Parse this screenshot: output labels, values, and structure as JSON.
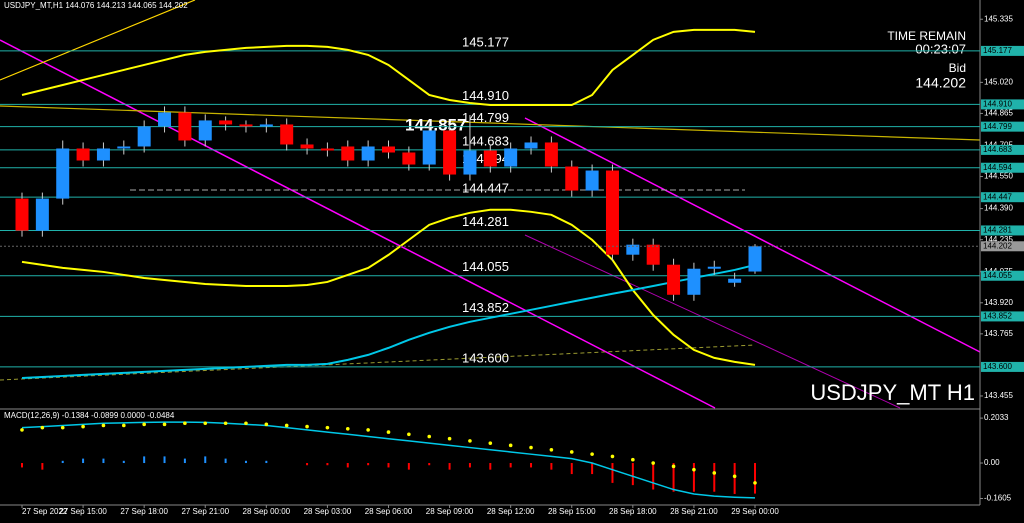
{
  "chart_data": {
    "type": "candlestick",
    "info": "USDJPY_MT,H1  144.076 144.213 144.065 144.202",
    "symbol": "USDJPY_MT H1",
    "time_remain_label": "TIME REMAIN",
    "time_remain": "00:23:07",
    "bid_label": "Bid",
    "bid": 144.202,
    "annotation": 144.857,
    "categories": [
      "27 Sep 2022",
      null,
      null,
      "27 Sep 15:00",
      null,
      null,
      "27 Sep 18:00",
      null,
      null,
      "27 Sep 21:00",
      null,
      null,
      "28 Sep 00:00",
      null,
      null,
      "28 Sep 03:00",
      null,
      null,
      "28 Sep 06:00",
      null,
      null,
      "28 Sep 09:00",
      null,
      null,
      "28 Sep 12:00",
      null,
      null,
      "28 Sep 15:00",
      null,
      null,
      "28 Sep 18:00",
      null,
      null,
      "28 Sep 21:00",
      null,
      null,
      "29 Sep 00:00"
    ],
    "open": [
      144.44,
      144.28,
      144.44,
      144.69,
      144.63,
      144.69,
      144.7,
      144.8,
      144.87,
      144.73,
      144.83,
      144.81,
      144.8,
      144.81,
      144.71,
      144.69,
      144.7,
      144.63,
      144.7,
      144.67,
      144.61,
      144.78,
      144.56,
      144.68,
      144.6,
      144.69,
      144.72,
      144.6,
      144.48,
      144.58,
      144.16,
      144.21,
      144.11,
      143.96,
      144.09,
      144.02,
      144.076
    ],
    "high": [
      144.47,
      144.47,
      144.73,
      144.72,
      144.72,
      144.73,
      144.83,
      144.9,
      144.9,
      144.86,
      144.85,
      144.83,
      144.84,
      144.84,
      144.74,
      144.72,
      144.73,
      144.73,
      144.73,
      144.7,
      144.81,
      144.81,
      144.857,
      144.71,
      144.72,
      144.75,
      144.75,
      144.63,
      144.61,
      144.61,
      144.24,
      144.24,
      144.14,
      144.12,
      144.13,
      144.07,
      144.213
    ],
    "low": [
      144.25,
      144.25,
      144.41,
      144.6,
      144.6,
      144.66,
      144.67,
      144.77,
      144.7,
      144.7,
      144.78,
      144.77,
      144.77,
      144.68,
      144.66,
      144.65,
      144.6,
      144.6,
      144.64,
      144.58,
      144.58,
      144.53,
      144.53,
      144.57,
      144.57,
      144.66,
      144.57,
      144.45,
      144.45,
      144.13,
      144.13,
      144.08,
      143.93,
      143.93,
      144.06,
      144.0,
      144.065
    ],
    "close": [
      144.28,
      144.44,
      144.69,
      144.63,
      144.69,
      144.7,
      144.8,
      144.87,
      144.73,
      144.83,
      144.81,
      144.8,
      144.81,
      144.71,
      144.69,
      144.68,
      144.63,
      144.7,
      144.67,
      144.61,
      144.78,
      144.56,
      144.68,
      144.6,
      144.69,
      144.72,
      144.6,
      144.48,
      144.58,
      144.16,
      144.21,
      144.11,
      143.96,
      144.09,
      144.1,
      144.04,
      144.202
    ],
    "up_color": "#1e90ff",
    "down_color": "#ff0000",
    "overlays": [
      {
        "color": "#ffff00",
        "values": [
          144.957,
          144.982,
          145.007,
          145.032,
          145.057,
          145.082,
          145.107,
          145.132,
          145.157,
          145.172,
          145.182,
          145.192,
          145.197,
          145.202,
          145.202,
          145.197,
          145.182,
          145.157,
          145.107,
          145.032,
          144.957,
          144.932,
          144.917,
          144.907,
          144.907,
          144.907,
          144.907,
          144.907,
          144.957,
          145.082,
          145.157,
          145.232,
          145.272,
          145.282,
          145.282,
          145.282,
          145.272
        ]
      },
      {
        "color": "#ffff00",
        "values": [
          144.124,
          144.109,
          144.094,
          144.084,
          144.074,
          144.059,
          144.044,
          144.034,
          144.024,
          144.014,
          144.009,
          144.004,
          144.004,
          144.004,
          144.009,
          144.024,
          144.059,
          144.094,
          144.159,
          144.234,
          144.309,
          144.344,
          144.369,
          144.384,
          144.384,
          144.374,
          144.359,
          144.309,
          144.234,
          144.134,
          143.984,
          143.859,
          143.76,
          143.685,
          143.645,
          143.625,
          143.61
        ]
      },
      {
        "color": "#00c8e8",
        "values": [
          143.545,
          143.55,
          143.555,
          143.56,
          143.565,
          143.57,
          143.575,
          143.58,
          143.585,
          143.59,
          143.595,
          143.6,
          143.605,
          143.61,
          143.61,
          143.615,
          143.635,
          143.66,
          143.695,
          143.735,
          143.77,
          143.8,
          143.825,
          143.845,
          143.865,
          143.885,
          143.905,
          143.925,
          143.945,
          143.965,
          143.984,
          144.004,
          144.024,
          144.044,
          144.064,
          144.084,
          144.109
        ]
      }
    ],
    "levels": [
      145.177,
      144.91,
      144.799,
      144.683,
      144.594,
      144.447,
      144.281,
      144.055,
      143.852,
      143.6
    ],
    "level_labels": [
      "145.177",
      "144.910",
      "144.799",
      "144.683",
      "144.594",
      "144.447",
      "144.281",
      "144.055",
      "143.852",
      "143.600"
    ],
    "level_color": "#20b2aa",
    "ylim": [
      143.395,
      145.431
    ],
    "yticks": [
      145.335,
      {
        "value": 145.02,
        "label": "145.020"
      },
      144.865,
      144.705,
      {
        "value": 144.55,
        "label": "144.550"
      },
      {
        "value": 144.39,
        "label": "144.390"
      },
      144.235,
      144.075,
      {
        "value": 143.92,
        "label": "143.920"
      },
      143.765,
      143.455
    ],
    "macd": {
      "label": "MACD(12,26,9) -0.1384 -0.0899 0.0000 -0.0484",
      "values": [
        -0.02,
        -0.03,
        0.01,
        0.02,
        0.02,
        0.01,
        0.03,
        0.03,
        0.02,
        0.03,
        0.02,
        0.01,
        0.01,
        0,
        -0.01,
        -0.01,
        -0.02,
        -0.01,
        -0.02,
        -0.03,
        -0.01,
        -0.03,
        -0.02,
        -0.03,
        -0.02,
        -0.02,
        -0.03,
        -0.05,
        -0.05,
        -0.09,
        -0.1,
        -0.12,
        -0.13,
        -0.13,
        -0.13,
        -0.14,
        -0.1384
      ],
      "signal": [
        0.15,
        0.16,
        0.16,
        0.165,
        0.17,
        0.17,
        0.175,
        0.175,
        0.18,
        0.18,
        0.18,
        0.18,
        0.175,
        0.17,
        0.165,
        0.16,
        0.155,
        0.15,
        0.14,
        0.13,
        0.12,
        0.11,
        0.1,
        0.09,
        0.08,
        0.07,
        0.06,
        0.05,
        0.04,
        0.03,
        0.015,
        0,
        -0.015,
        -0.03,
        -0.045,
        -0.06,
        -0.0899
      ],
      "line": [
        0.16,
        0.165,
        0.17,
        0.175,
        0.18,
        0.182,
        0.184,
        0.185,
        0.185,
        0.184,
        0.18,
        0.175,
        0.17,
        0.16,
        0.15,
        0.14,
        0.13,
        0.12,
        0.11,
        0.1,
        0.09,
        0.08,
        0.07,
        0.06,
        0.05,
        0.04,
        0.03,
        0.02,
        0,
        -0.03,
        -0.06,
        -0.09,
        -0.12,
        -0.14,
        -0.15,
        -0.155,
        -0.158
      ],
      "pos_color": "#1e90ff",
      "neg_color": "#ff0000",
      "signal_color": "#ffff00",
      "line_color": "#00c8e8",
      "ylim": [
        -0.19,
        0.24
      ],
      "yticks": [
        0.2033,
        {
          "value": 0,
          "label": "0.00"
        },
        -0.1605
      ]
    }
  }
}
